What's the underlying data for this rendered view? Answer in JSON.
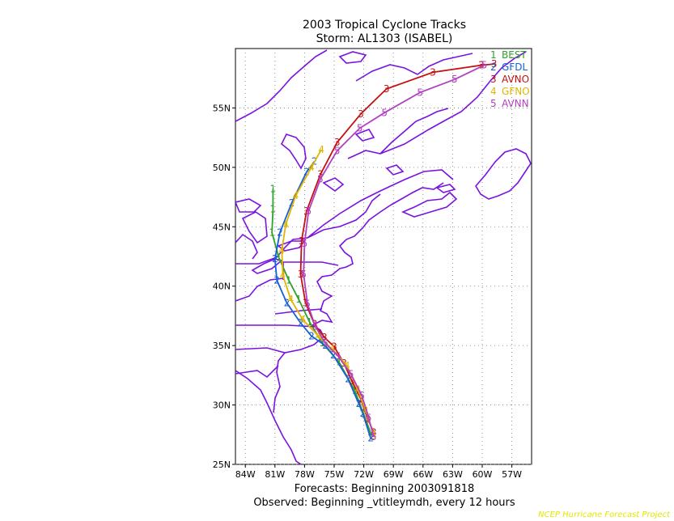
{
  "title_line1": "2003 Tropical Cyclone Tracks",
  "title_line2": "Storm: AL1303 (ISABEL)",
  "footer_line1": "Forecasts: Beginning 2003091818",
  "footer_line2": "Observed: Beginning _vtitleymdh, every 12 hours",
  "credit": "NCEP Hurricane Forecast Project",
  "colors": {
    "coastline": "#7a12e0",
    "BEST": "#2ea12e",
    "GFDL": "#1560d6",
    "AVNO": "#c41010",
    "GFNO": "#e0b400",
    "AVNN": "#b040c0"
  },
  "chart_data": {
    "type": "line",
    "title": "2003 Tropical Cyclone Tracks",
    "subtitle": "Storm: AL1303 (ISABEL)",
    "xlim": [
      -85,
      -55
    ],
    "ylim": [
      25,
      60
    ],
    "grid": true,
    "legend_placement": "top-right",
    "x_ticks": [
      {
        "value": -84,
        "label": "84W"
      },
      {
        "value": -81,
        "label": "81W"
      },
      {
        "value": -78,
        "label": "78W"
      },
      {
        "value": -75,
        "label": "75W"
      },
      {
        "value": -72,
        "label": "72W"
      },
      {
        "value": -69,
        "label": "69W"
      },
      {
        "value": -66,
        "label": "66W"
      },
      {
        "value": -63,
        "label": "63W"
      },
      {
        "value": -60,
        "label": "60W"
      },
      {
        "value": -57,
        "label": "57W"
      }
    ],
    "y_ticks": [
      {
        "value": 25,
        "label": "25N"
      },
      {
        "value": 30,
        "label": "30N"
      },
      {
        "value": 35,
        "label": "35N"
      },
      {
        "value": 40,
        "label": "40N"
      },
      {
        "value": 45,
        "label": "45N"
      },
      {
        "value": 50,
        "label": "50N"
      },
      {
        "value": 55,
        "label": "55N"
      }
    ],
    "series": [
      {
        "id": "1",
        "name": "BEST",
        "color": "#2ea12e",
        "points": [
          [
            -71.2,
            27.4
          ],
          [
            -72.0,
            29.2
          ],
          [
            -72.9,
            31.2
          ],
          [
            -74.5,
            33.6
          ],
          [
            -76.2,
            35.2
          ],
          [
            -77.5,
            37.0
          ],
          [
            -78.6,
            38.9
          ],
          [
            -79.6,
            40.5
          ],
          [
            -80.6,
            42.4
          ],
          [
            -81.3,
            44.5
          ],
          [
            -81.2,
            46.5
          ],
          [
            -81.2,
            48.2
          ]
        ]
      },
      {
        "id": "2",
        "name": "GFDL",
        "color": "#1560d6",
        "points": [
          [
            -71.3,
            27.2
          ],
          [
            -72.1,
            29.3
          ],
          [
            -72.5,
            30.1
          ],
          [
            -73.6,
            32.2
          ],
          [
            -75.1,
            34.2
          ],
          [
            -75.9,
            35.0
          ],
          [
            -77.3,
            35.8
          ],
          [
            -78.4,
            36.9
          ],
          [
            -79.8,
            38.6
          ],
          [
            -80.8,
            40.5
          ],
          [
            -81.0,
            42.3
          ],
          [
            -80.5,
            44.5
          ],
          [
            -79.3,
            47.0
          ],
          [
            -77.8,
            49.6
          ],
          [
            -77.0,
            50.5
          ]
        ]
      },
      {
        "id": "3",
        "name": "AVNO",
        "color": "#c41010",
        "points": [
          [
            -71.0,
            27.7
          ],
          [
            -71.6,
            28.8
          ],
          [
            -72.3,
            30.5
          ],
          [
            -73.2,
            32.0
          ],
          [
            -74.0,
            33.5
          ],
          [
            -75.0,
            34.9
          ],
          [
            -76.0,
            35.7
          ],
          [
            -77.0,
            36.8
          ],
          [
            -77.9,
            38.6
          ],
          [
            -78.4,
            41.0
          ],
          [
            -78.3,
            43.8
          ],
          [
            -77.8,
            46.3
          ],
          [
            -76.4,
            49.4
          ],
          [
            -74.7,
            52.1
          ],
          [
            -72.3,
            54.5
          ],
          [
            -69.7,
            56.6
          ],
          [
            -65.0,
            58.0
          ],
          [
            -60.1,
            58.6
          ],
          [
            -58.8,
            58.7
          ]
        ]
      },
      {
        "id": "4",
        "name": "GFNO",
        "color": "#e0b400",
        "points": [
          [
            -71.0,
            27.5
          ],
          [
            -71.8,
            29.5
          ],
          [
            -72.6,
            31.3
          ],
          [
            -73.7,
            33.3
          ],
          [
            -75.2,
            34.7
          ],
          [
            -76.6,
            35.8
          ],
          [
            -78.2,
            37.2
          ],
          [
            -79.4,
            38.9
          ],
          [
            -80.2,
            40.9
          ],
          [
            -80.3,
            43.0
          ],
          [
            -79.9,
            45.2
          ],
          [
            -78.9,
            47.6
          ],
          [
            -77.3,
            50.0
          ],
          [
            -76.3,
            51.5
          ]
        ]
      },
      {
        "id": "5",
        "name": "AVNN",
        "color": "#b040c0",
        "points": [
          [
            -71.0,
            27.3
          ],
          [
            -71.5,
            28.9
          ],
          [
            -72.2,
            30.8
          ],
          [
            -73.3,
            32.6
          ],
          [
            -74.6,
            34.1
          ],
          [
            -75.9,
            35.2
          ],
          [
            -76.9,
            36.6
          ],
          [
            -77.7,
            38.5
          ],
          [
            -78.1,
            41.0
          ],
          [
            -78.0,
            43.6
          ],
          [
            -77.6,
            46.3
          ],
          [
            -76.4,
            49.0
          ],
          [
            -74.7,
            51.4
          ],
          [
            -72.4,
            53.3
          ],
          [
            -69.9,
            54.6
          ],
          [
            -66.3,
            56.3
          ],
          [
            -62.8,
            57.4
          ],
          [
            -59.8,
            58.6
          ]
        ]
      }
    ]
  }
}
